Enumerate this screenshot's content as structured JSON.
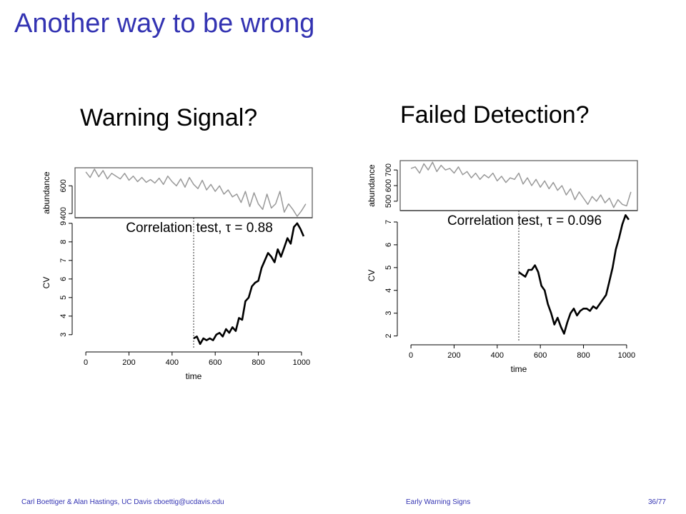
{
  "slide": {
    "title": "Another way to be wrong",
    "footer": {
      "authors": "Carl Boettiger & Alan Hastings, UC Davis cboettig@ucdavis.edu",
      "talk_title": "Early Warning Signs",
      "page": "36/77"
    }
  },
  "chart_data": [
    {
      "type": "line",
      "title": "Warning Signal?",
      "xlabel": "time",
      "xlim": [
        -50,
        1050
      ],
      "x_ticks": [
        0,
        200,
        400,
        600,
        800,
        1000
      ],
      "correlation_label": "Correlation test, τ = 0.88",
      "threshold_x": 500,
      "top_panel": {
        "ylabel": "abundance",
        "ylim": [
          370,
          730
        ],
        "y_ticks": [
          400,
          600
        ],
        "series": [
          {
            "color": "#999999",
            "x": [
              0,
              20,
              40,
              60,
              80,
              100,
              120,
              140,
              160,
              180,
              200,
              220,
              240,
              260,
              280,
              300,
              320,
              340,
              360,
              380,
              400,
              420,
              440,
              460,
              480,
              500,
              520,
              540,
              560,
              580,
              600,
              620,
              640,
              660,
              680,
              700,
              720,
              740,
              760,
              780,
              800,
              820,
              840,
              860,
              880,
              900,
              920,
              940,
              960,
              980,
              1000,
              1020
            ],
            "values": [
              700,
              660,
              720,
              665,
              710,
              650,
              690,
              670,
              650,
              690,
              640,
              670,
              630,
              660,
              625,
              645,
              620,
              655,
              610,
              670,
              630,
              600,
              650,
              590,
              660,
              610,
              580,
              640,
              570,
              610,
              560,
              600,
              540,
              570,
              520,
              540,
              480,
              560,
              450,
              550,
              470,
              430,
              540,
              440,
              470,
              560,
              410,
              470,
              430,
              380,
              420,
              470
            ]
          }
        ]
      },
      "bottom_panel": {
        "ylabel": "CV",
        "ylim": [
          2.3,
          9.3
        ],
        "y_ticks": [
          3,
          4,
          5,
          6,
          7,
          8,
          9
        ],
        "series": [
          {
            "color": "#000000",
            "x": [
              500,
              515,
              530,
              545,
              560,
              575,
              590,
              605,
              620,
              635,
              650,
              665,
              680,
              695,
              710,
              725,
              740,
              755,
              770,
              785,
              800,
              815,
              830,
              845,
              860,
              875,
              890,
              905,
              920,
              935,
              950,
              965,
              980,
              995,
              1010
            ],
            "values": [
              2.8,
              2.9,
              2.5,
              2.8,
              2.7,
              2.8,
              2.7,
              3.0,
              3.1,
              2.9,
              3.3,
              3.1,
              3.4,
              3.2,
              3.9,
              3.8,
              4.8,
              5.0,
              5.6,
              5.8,
              5.9,
              6.6,
              7.0,
              7.4,
              7.2,
              6.9,
              7.6,
              7.2,
              7.7,
              8.2,
              7.9,
              8.8,
              9.0,
              8.7,
              8.3
            ]
          }
        ]
      }
    },
    {
      "type": "line",
      "title": "Failed Detection?",
      "xlabel": "time",
      "xlim": [
        -50,
        1050
      ],
      "x_ticks": [
        0,
        200,
        400,
        600,
        800,
        1000
      ],
      "correlation_label": "Correlation test, τ = 0.096",
      "threshold_x": 500,
      "top_panel": {
        "ylabel": "abundance",
        "ylim": [
          440,
          760
        ],
        "y_ticks": [
          500,
          600,
          700
        ],
        "series": [
          {
            "color": "#999999",
            "x": [
              0,
              20,
              40,
              60,
              80,
              100,
              120,
              140,
              160,
              180,
              200,
              220,
              240,
              260,
              280,
              300,
              320,
              340,
              360,
              380,
              400,
              420,
              440,
              460,
              480,
              500,
              520,
              540,
              560,
              580,
              600,
              620,
              640,
              660,
              680,
              700,
              720,
              740,
              760,
              780,
              800,
              820,
              840,
              860,
              880,
              900,
              920,
              940,
              960,
              980,
              1000,
              1020
            ],
            "values": [
              710,
              720,
              680,
              740,
              700,
              750,
              690,
              730,
              700,
              710,
              680,
              720,
              670,
              690,
              650,
              680,
              640,
              670,
              650,
              680,
              630,
              660,
              620,
              650,
              640,
              680,
              610,
              650,
              600,
              640,
              590,
              630,
              580,
              620,
              570,
              600,
              540,
              580,
              510,
              560,
              520,
              480,
              530,
              500,
              540,
              490,
              520,
              460,
              510,
              480,
              470,
              560
            ]
          }
        ]
      },
      "bottom_panel": {
        "ylabel": "CV",
        "ylim": [
          1.8,
          7.5
        ],
        "y_ticks": [
          2,
          3,
          4,
          5,
          6,
          7
        ],
        "series": [
          {
            "color": "#000000",
            "x": [
              500,
              515,
              530,
              545,
              560,
              575,
              590,
              605,
              620,
              635,
              650,
              665,
              680,
              695,
              710,
              725,
              740,
              755,
              770,
              785,
              800,
              815,
              830,
              845,
              860,
              875,
              890,
              905,
              920,
              935,
              950,
              965,
              980,
              995,
              1010
            ],
            "values": [
              4.8,
              4.7,
              4.6,
              4.9,
              4.9,
              5.1,
              4.8,
              4.2,
              4.0,
              3.4,
              3.0,
              2.5,
              2.8,
              2.4,
              2.1,
              2.6,
              3.0,
              3.2,
              2.9,
              3.1,
              3.2,
              3.2,
              3.1,
              3.3,
              3.2,
              3.4,
              3.6,
              3.8,
              4.4,
              5.0,
              5.8,
              6.3,
              6.9,
              7.3,
              7.1
            ]
          }
        ]
      }
    }
  ]
}
